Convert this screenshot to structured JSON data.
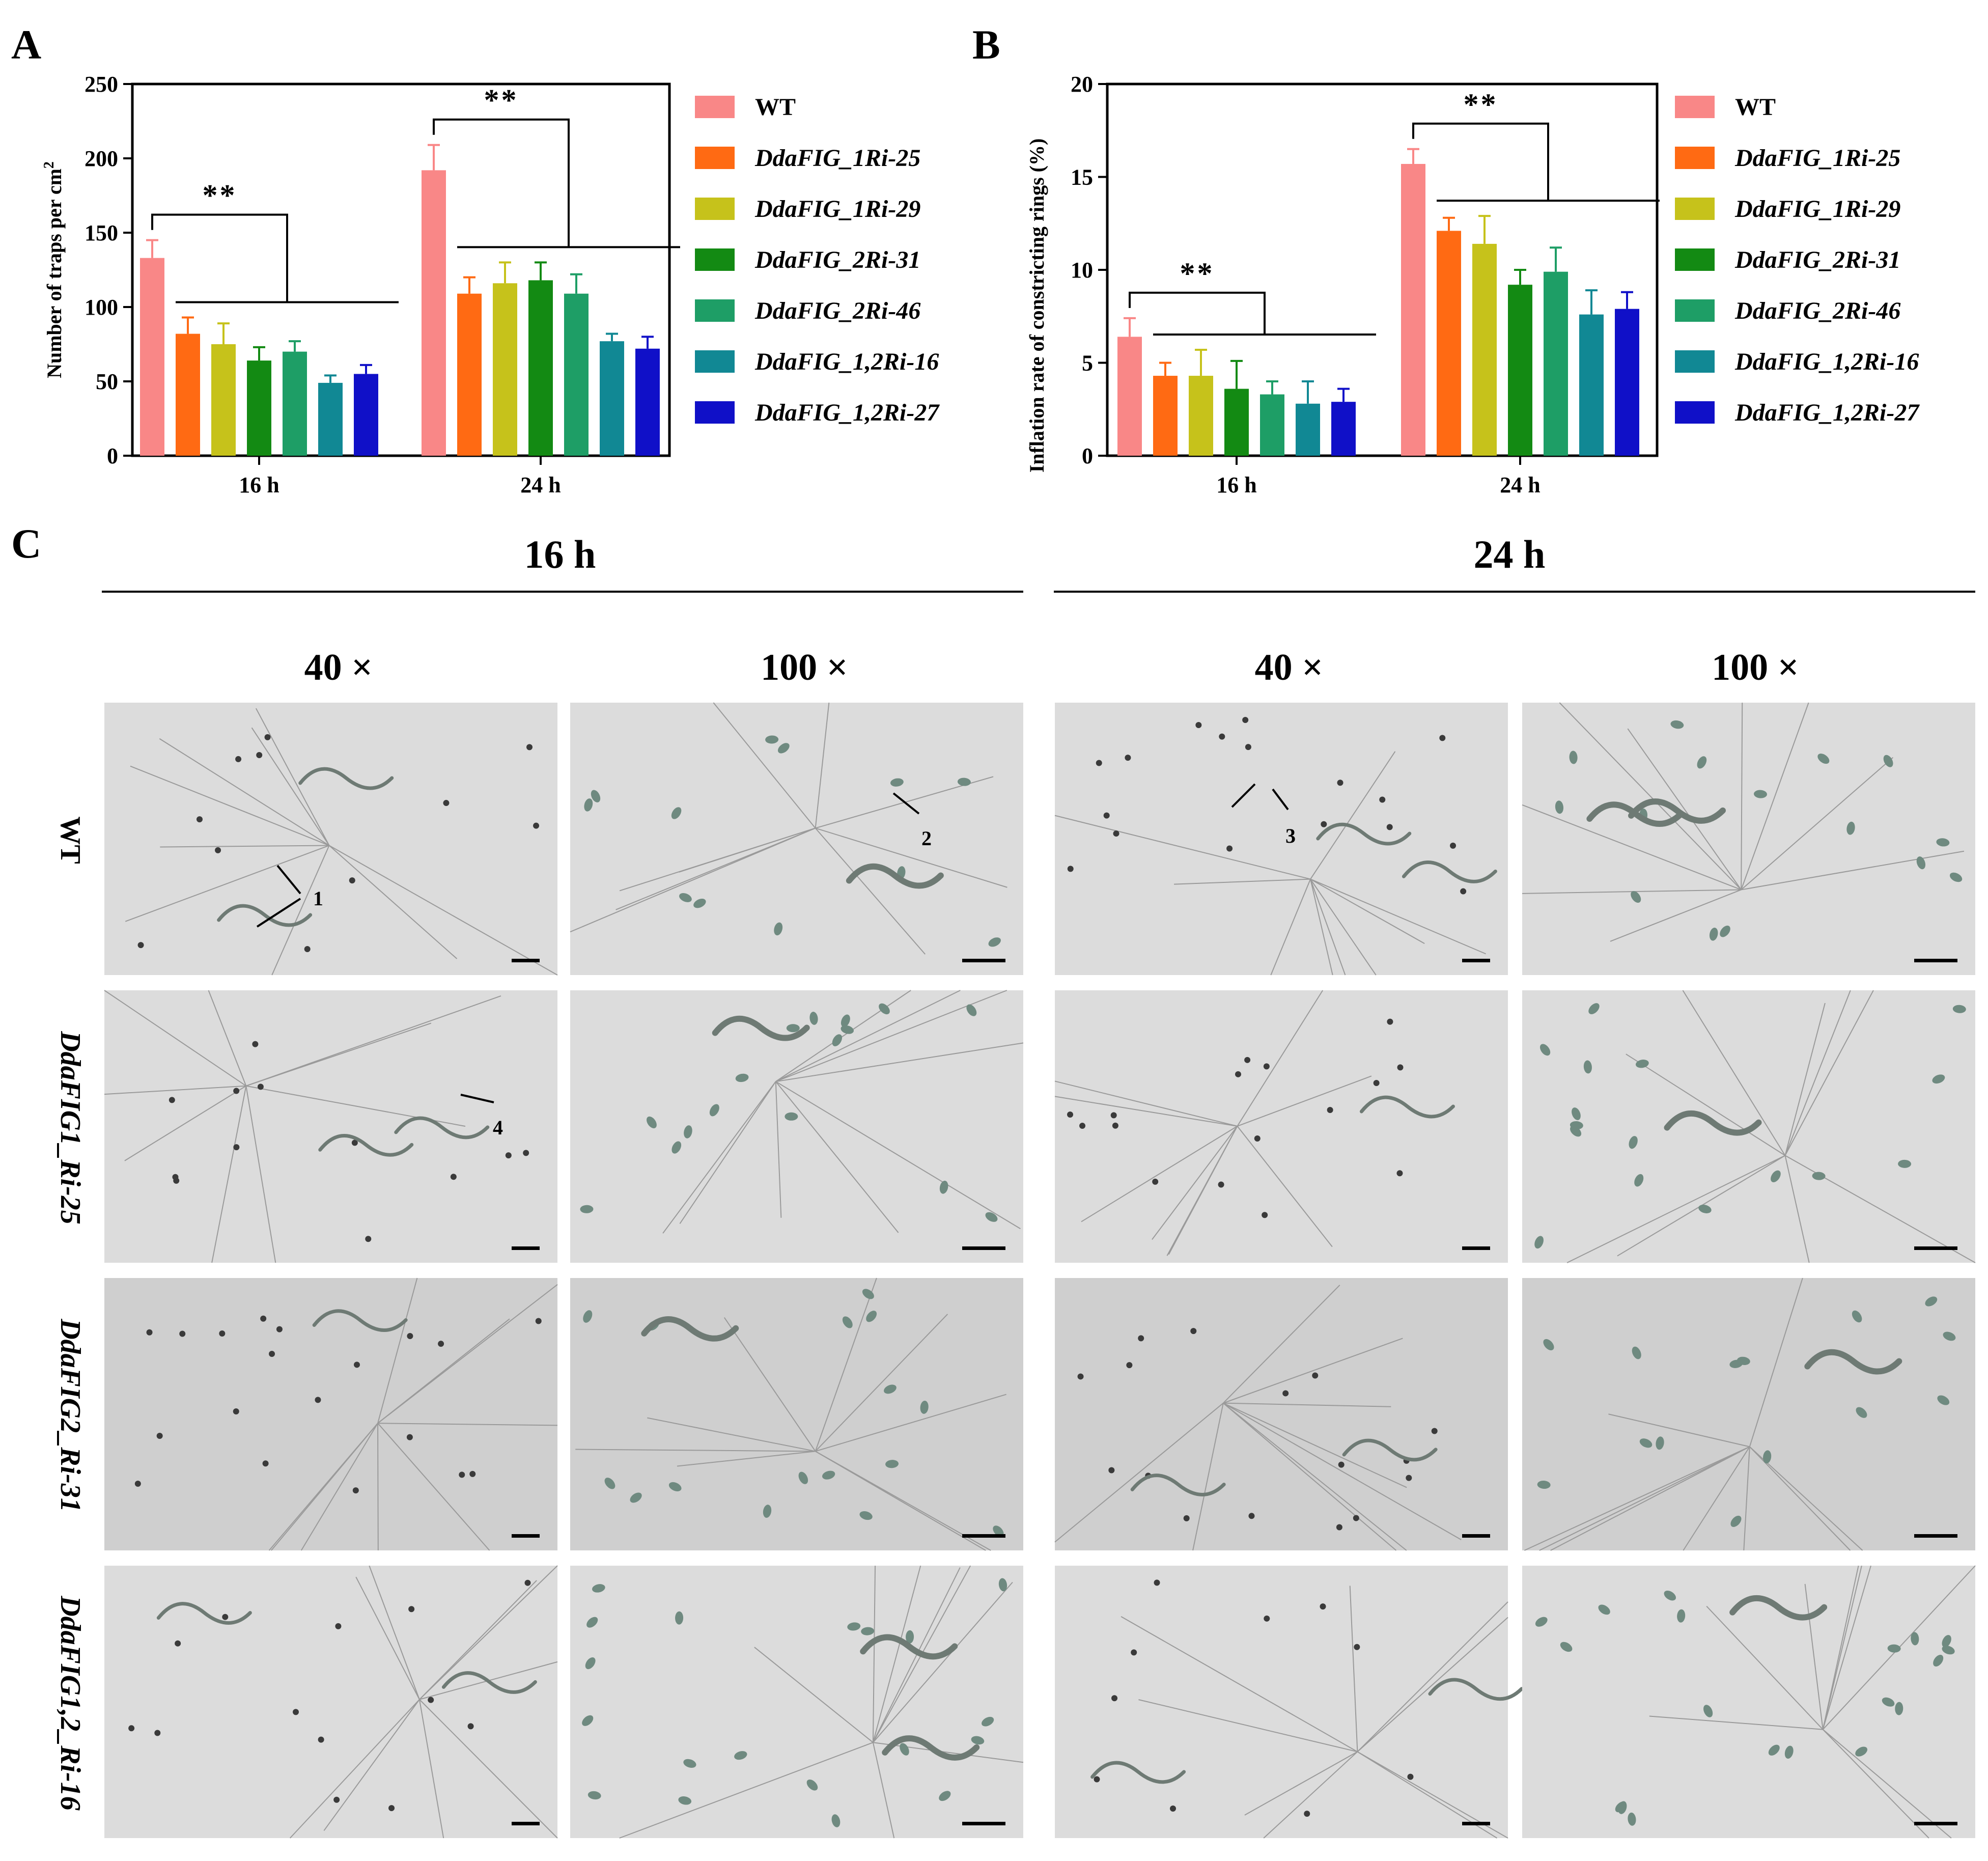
{
  "panels": {
    "a": "A",
    "b": "B",
    "c": "C"
  },
  "legend": [
    {
      "label": "WT",
      "color": "#F98787"
    },
    {
      "label": "DdaFIG_1Ri-25",
      "color": "#FF6A13"
    },
    {
      "label": "DdaFIG_1Ri-29",
      "color": "#C6C21B"
    },
    {
      "label": "DdaFIG_2Ri-31",
      "color": "#138A13"
    },
    {
      "label": "DdaFIG_2Ri-46",
      "color": "#1E9E66"
    },
    {
      "label": "DdaFIG_1,2Ri-16",
      "color": "#118894"
    },
    {
      "label": "DdaFIG_1,2Ri-27",
      "color": "#1010C8"
    }
  ],
  "chart_data": [
    {
      "type": "bar",
      "title": "",
      "xlabel": "",
      "ylabel": "Number of traps per cm",
      "ylabel_superscript": "2",
      "categories": [
        "16 h",
        "24 h"
      ],
      "ylim": [
        0,
        250
      ],
      "yticks": [
        "0",
        "50",
        "100",
        "150",
        "200",
        "250"
      ],
      "series": [
        {
          "name": "WT",
          "values": [
            133,
            192
          ],
          "errors": [
            12,
            17
          ]
        },
        {
          "name": "DdaFIG_1Ri-25",
          "values": [
            82,
            109
          ],
          "errors": [
            11,
            11
          ]
        },
        {
          "name": "DdaFIG_1Ri-29",
          "values": [
            75,
            116
          ],
          "errors": [
            14,
            14
          ]
        },
        {
          "name": "DdaFIG_2Ri-31",
          "values": [
            64,
            118
          ],
          "errors": [
            9,
            12
          ]
        },
        {
          "name": "DdaFIG_2Ri-46",
          "values": [
            70,
            109
          ],
          "errors": [
            7,
            13
          ]
        },
        {
          "name": "DdaFIG_1,2Ri-16",
          "values": [
            49,
            77
          ],
          "errors": [
            5,
            5
          ]
        },
        {
          "name": "DdaFIG_1,2Ri-27",
          "values": [
            55,
            72
          ],
          "errors": [
            6,
            8
          ]
        }
      ],
      "significance": [
        "**",
        "**"
      ],
      "legend_position": "right"
    },
    {
      "type": "bar",
      "title": "",
      "xlabel": "",
      "ylabel": "Inflation rate of constricting rings (%)",
      "categories": [
        "16 h",
        "24 h"
      ],
      "ylim": [
        0,
        20
      ],
      "yticks": [
        "0",
        "5",
        "10",
        "15",
        "20"
      ],
      "series": [
        {
          "name": "WT",
          "values": [
            6.4,
            15.7
          ],
          "errors": [
            1.0,
            0.8
          ]
        },
        {
          "name": "DdaFIG_1Ri-25",
          "values": [
            4.3,
            12.1
          ],
          "errors": [
            0.7,
            0.7
          ]
        },
        {
          "name": "DdaFIG_1Ri-29",
          "values": [
            4.3,
            11.4
          ],
          "errors": [
            1.4,
            1.5
          ]
        },
        {
          "name": "DdaFIG_2Ri-31",
          "values": [
            3.6,
            9.2
          ],
          "errors": [
            1.5,
            0.8
          ]
        },
        {
          "name": "DdaFIG_2Ri-46",
          "values": [
            3.3,
            9.9
          ],
          "errors": [
            0.7,
            1.3
          ]
        },
        {
          "name": "DdaFIG_1,2Ri-16",
          "values": [
            2.8,
            7.6
          ],
          "errors": [
            1.2,
            1.3
          ]
        },
        {
          "name": "DdaFIG_1,2Ri-27",
          "values": [
            2.9,
            7.9
          ],
          "errors": [
            0.7,
            0.9
          ]
        }
      ],
      "significance": [
        "**",
        "**"
      ],
      "legend_position": "right"
    }
  ],
  "micrographs": {
    "time_headers": [
      "16 h",
      "24 h"
    ],
    "magnifications": [
      "40 ×",
      "100 ×",
      "40 ×",
      "100 ×"
    ],
    "row_labels": [
      "WT",
      "DdaFIG1_Ri-25",
      "DdaFIG2_Ri-31",
      "DdaFIG1,2_Ri-16"
    ],
    "callouts": [
      "1",
      "2",
      "3",
      "4"
    ]
  }
}
